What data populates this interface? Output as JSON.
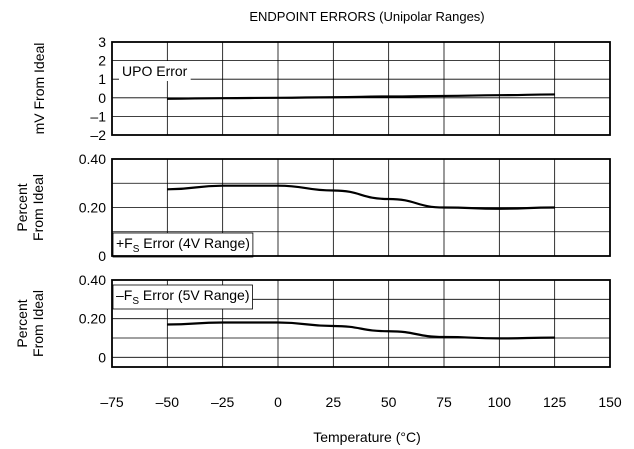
{
  "chart_data": {
    "type": "line",
    "title": "ENDPOINT ERRORS (Unipolar Ranges)",
    "xlabel": "Temperature (°C)",
    "xlim": [
      -75,
      150
    ],
    "x_ticks": [
      -75,
      -50,
      -25,
      0,
      25,
      50,
      75,
      100,
      125,
      150
    ],
    "x_tick_labels": [
      "–75",
      "–50",
      "–25",
      "0",
      "25",
      "50",
      "75",
      "100",
      "125",
      "150"
    ],
    "grid": true,
    "panels": [
      {
        "ylabel_lines": [
          "mV From Ideal"
        ],
        "ylim": [
          -2,
          3
        ],
        "y_ticks": [
          -2,
          -1,
          0,
          1,
          2,
          3
        ],
        "y_tick_labels": [
          "–2",
          "–1",
          "0",
          "1",
          "2",
          "3"
        ],
        "label_main": "UPO Error",
        "label_sub": "",
        "label_tail": "",
        "series": [
          {
            "x": [
              -50,
              -25,
              0,
              25,
              50,
              75,
              100,
              125
            ],
            "y": [
              -0.05,
              -0.02,
              0.0,
              0.03,
              0.07,
              0.1,
              0.14,
              0.18
            ]
          }
        ]
      },
      {
        "ylabel_lines": [
          "Percent",
          "From Ideal"
        ],
        "ylim": [
          0,
          0.4
        ],
        "y_ticks": [
          0,
          0.1,
          0.2,
          0.3,
          0.4
        ],
        "y_tick_labels": [
          "0",
          "",
          "0.20",
          "",
          "0.40"
        ],
        "label_main": "+F",
        "label_sub": "S",
        "label_tail": " Error (4V Range)",
        "series": [
          {
            "x": [
              -50,
              -25,
              0,
              25,
              50,
              75,
              100,
              125
            ],
            "y": [
              0.275,
              0.29,
              0.29,
              0.27,
              0.235,
              0.2,
              0.195,
              0.2
            ]
          }
        ]
      },
      {
        "ylabel_lines": [
          "Percent",
          "From Ideal"
        ],
        "ylim": [
          -0.05,
          0.4
        ],
        "y_ticks": [
          0,
          0.1,
          0.2,
          0.3,
          0.4
        ],
        "y_tick_labels": [
          "0",
          "",
          "0.20",
          "",
          "0.40"
        ],
        "label_main": "–F",
        "label_sub": "S",
        "label_tail": " Error (5V Range)",
        "series": [
          {
            "x": [
              -50,
              -25,
              0,
              25,
              50,
              75,
              100,
              125
            ],
            "y": [
              0.17,
              0.18,
              0.18,
              0.162,
              0.135,
              0.105,
              0.098,
              0.102
            ]
          }
        ]
      }
    ]
  }
}
